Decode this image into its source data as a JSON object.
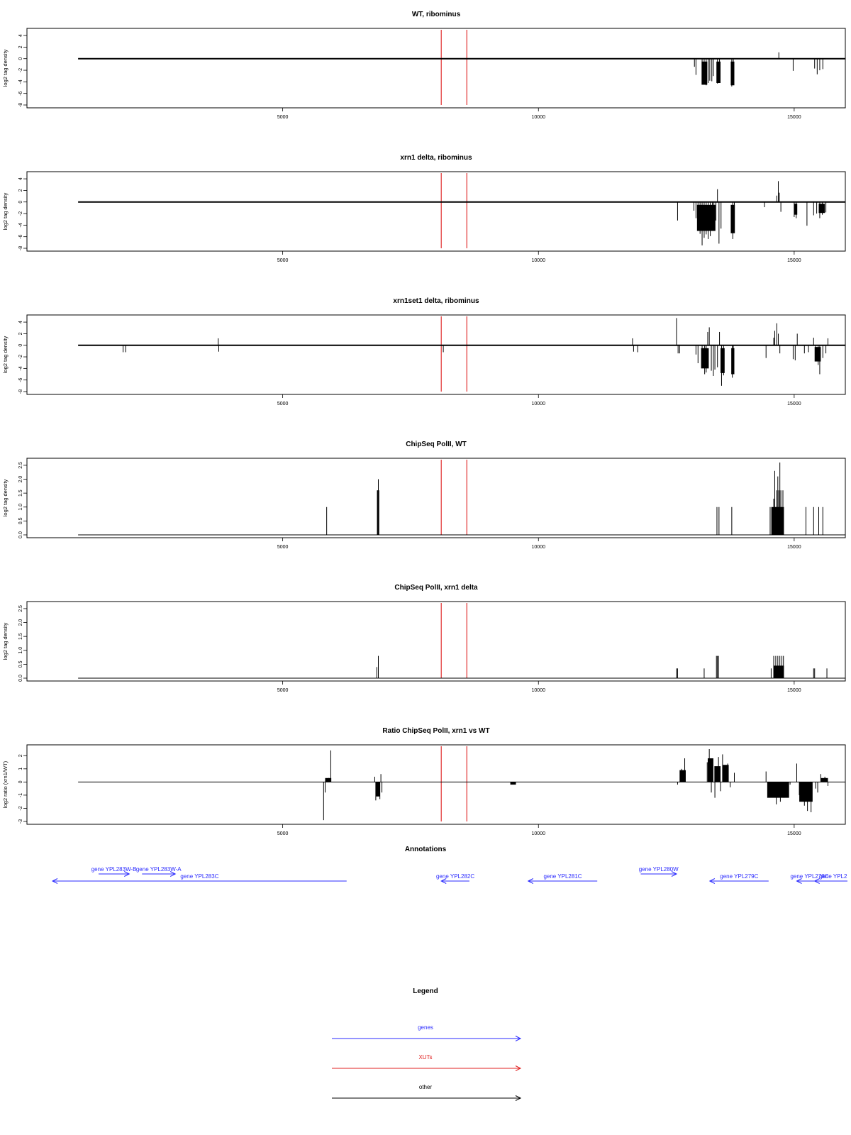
{
  "xaxis": {
    "min": 0,
    "max": 16000,
    "ticks": [
      5000,
      10000,
      15000
    ]
  },
  "colors": {
    "data": "#000000",
    "xut_marker": "#e03030",
    "gene": "#2a2aff",
    "xut": "#e02020",
    "other": "#000000"
  },
  "xut_markers": [
    8100,
    8600
  ],
  "chart_data": [
    {
      "type": "bar",
      "title": "WT, ribominus",
      "ylabel": "log2 tag density",
      "ylim": [
        -8,
        4.5
      ],
      "yticks": [
        -8,
        -6,
        -4,
        -2,
        0,
        2,
        4
      ],
      "baseline_range": [
        1000,
        16000
      ],
      "bars": [
        [
          13050,
          -1.4
        ],
        [
          13080,
          -2.8
        ],
        [
          13200,
          -4.0
        ],
        [
          13240,
          -3.3
        ],
        [
          13280,
          -4.6
        ],
        [
          13320,
          -4.2
        ],
        [
          13350,
          -3.8
        ],
        [
          13390,
          -3.9
        ],
        [
          13420,
          -3.0
        ],
        [
          13500,
          -4.3
        ],
        [
          13540,
          -3.2
        ],
        [
          13780,
          -4.8
        ],
        [
          13810,
          -3.9
        ],
        [
          14700,
          1.1
        ],
        [
          14980,
          -2.1
        ],
        [
          15400,
          -1.7
        ],
        [
          15450,
          -2.7
        ],
        [
          15500,
          -2.0
        ],
        [
          15560,
          -1.8
        ]
      ],
      "spans": [
        [
          13190,
          13300,
          -4.5,
          -0.5
        ],
        [
          13480,
          13560,
          -4.2,
          -0.5
        ],
        [
          13760,
          13830,
          -4.6,
          -0.5
        ]
      ]
    },
    {
      "type": "bar",
      "title": "xrn1 delta, ribominus",
      "ylabel": "log2 tag density",
      "ylim": [
        -8,
        4.5
      ],
      "yticks": [
        -8,
        -6,
        -4,
        -2,
        0,
        2,
        4
      ],
      "baseline_range": [
        1000,
        16000
      ],
      "bars": [
        [
          12720,
          -3.2
        ],
        [
          13040,
          -1.5
        ],
        [
          13080,
          -2.8
        ],
        [
          13120,
          -4.2
        ],
        [
          13160,
          -5.5
        ],
        [
          13200,
          -7.5
        ],
        [
          13240,
          -6.2
        ],
        [
          13280,
          -5.6
        ],
        [
          13320,
          -6.4
        ],
        [
          13360,
          -5.9
        ],
        [
          13400,
          -4.6
        ],
        [
          13430,
          -3.6
        ],
        [
          13470,
          -3.2
        ],
        [
          13500,
          2.2
        ],
        [
          13530,
          -7.2
        ],
        [
          13570,
          -4.6
        ],
        [
          13800,
          -6.4
        ],
        [
          13830,
          -5.1
        ],
        [
          14420,
          -0.9
        ],
        [
          14660,
          1.1
        ],
        [
          14690,
          3.6
        ],
        [
          14710,
          1.6
        ],
        [
          14740,
          -1.7
        ],
        [
          15000,
          -2.6
        ],
        [
          15040,
          -2.8
        ],
        [
          15250,
          -4.1
        ],
        [
          15380,
          -2.3
        ],
        [
          15440,
          -2.0
        ],
        [
          15500,
          -2.8
        ],
        [
          15550,
          -2.2
        ],
        [
          15620,
          -1.8
        ]
      ],
      "spans": [
        [
          13100,
          13460,
          -5.0,
          -0.5
        ],
        [
          13760,
          13840,
          -5.4,
          -0.5
        ],
        [
          15000,
          15060,
          -2.2,
          -0.3
        ],
        [
          15480,
          15600,
          -1.9,
          -0.3
        ]
      ]
    },
    {
      "type": "bar",
      "title": "xrn1set1 delta, ribominus",
      "ylabel": "log2 tag density",
      "ylim": [
        -8,
        4.5
      ],
      "yticks": [
        -8,
        -6,
        -4,
        -2,
        0,
        2,
        4
      ],
      "baseline_range": [
        1000,
        16000
      ],
      "bars": [
        [
          1880,
          -1.2
        ],
        [
          1930,
          -1.2
        ],
        [
          3740,
          1.2
        ],
        [
          3750,
          -1.1
        ],
        [
          8140,
          -1.2
        ],
        [
          11840,
          1.2
        ],
        [
          11860,
          -1.1
        ],
        [
          11940,
          -1.2
        ],
        [
          12700,
          4.7
        ],
        [
          12730,
          -1.4
        ],
        [
          12760,
          -1.4
        ],
        [
          13080,
          -1.6
        ],
        [
          13120,
          -3.1
        ],
        [
          13200,
          -3.6
        ],
        [
          13250,
          -5.0
        ],
        [
          13280,
          -4.7
        ],
        [
          13310,
          2.3
        ],
        [
          13340,
          3.1
        ],
        [
          13380,
          -4.4
        ],
        [
          13420,
          -5.3
        ],
        [
          13450,
          -4.2
        ],
        [
          13500,
          -3.8
        ],
        [
          13540,
          2.3
        ],
        [
          13580,
          -7.0
        ],
        [
          13620,
          -5.2
        ],
        [
          13790,
          -5.6
        ],
        [
          13810,
          -4.8
        ],
        [
          14450,
          -2.2
        ],
        [
          14600,
          1.3
        ],
        [
          14620,
          2.5
        ],
        [
          14660,
          3.8
        ],
        [
          14690,
          2.0
        ],
        [
          14720,
          -1.4
        ],
        [
          14980,
          -2.4
        ],
        [
          15020,
          -2.6
        ],
        [
          15060,
          2.0
        ],
        [
          15200,
          -1.4
        ],
        [
          15280,
          -1.2
        ],
        [
          15380,
          1.3
        ],
        [
          15420,
          -2.6
        ],
        [
          15470,
          -3.4
        ],
        [
          15500,
          -5.0
        ],
        [
          15560,
          -2.2
        ],
        [
          15620,
          -1.4
        ],
        [
          15660,
          1.2
        ]
      ],
      "spans": [
        [
          13180,
          13330,
          -4.0,
          -0.5
        ],
        [
          13560,
          13640,
          -4.8,
          -0.5
        ],
        [
          13770,
          13830,
          -5.0,
          -0.5
        ],
        [
          15400,
          15520,
          -2.8,
          -0.3
        ]
      ]
    },
    {
      "type": "bar",
      "title": "ChipSeq PolII, WT",
      "ylabel": "log2 tag density",
      "ylim": [
        0,
        2.6
      ],
      "yticks": [
        0.0,
        0.5,
        1.0,
        1.5,
        2.0,
        2.5
      ],
      "baseline_range": [
        1000,
        16000
      ],
      "bars": [
        [
          5860,
          1.0
        ],
        [
          6850,
          1.6
        ],
        [
          6870,
          2.0
        ],
        [
          6880,
          1.6
        ],
        [
          13490,
          1.0
        ],
        [
          13530,
          1.0
        ],
        [
          13780,
          1.0
        ],
        [
          14530,
          1.0
        ],
        [
          14560,
          1.0
        ],
        [
          14600,
          1.3
        ],
        [
          14620,
          2.3
        ],
        [
          14640,
          1.0
        ],
        [
          14660,
          1.6
        ],
        [
          14680,
          2.1
        ],
        [
          14700,
          1.6
        ],
        [
          14720,
          2.6
        ],
        [
          14740,
          1.6
        ],
        [
          14760,
          1.0
        ],
        [
          14780,
          1.6
        ],
        [
          15230,
          1.0
        ],
        [
          15380,
          1.0
        ],
        [
          15480,
          1.0
        ],
        [
          15560,
          1.0
        ]
      ],
      "spans": [
        [
          14560,
          14800,
          1.0,
          0.0
        ],
        [
          6850,
          6880,
          1.6,
          0.0
        ]
      ]
    },
    {
      "type": "bar",
      "title": "ChipSeq PolII, xrn1 delta",
      "ylabel": "log2 tag density",
      "ylim": [
        0,
        2.6
      ],
      "yticks": [
        0.0,
        0.5,
        1.0,
        1.5,
        2.0,
        2.5
      ],
      "baseline_range": [
        1000,
        16000
      ],
      "bars": [
        [
          6840,
          0.4
        ],
        [
          6870,
          0.8
        ],
        [
          12700,
          0.35
        ],
        [
          12720,
          0.35
        ],
        [
          13240,
          0.35
        ],
        [
          13480,
          0.8
        ],
        [
          13500,
          0.8
        ],
        [
          13520,
          0.8
        ],
        [
          14550,
          0.35
        ],
        [
          14600,
          0.8
        ],
        [
          14640,
          0.8
        ],
        [
          14680,
          0.8
        ],
        [
          14700,
          0.4
        ],
        [
          14720,
          0.8
        ],
        [
          14760,
          0.8
        ],
        [
          14790,
          0.8
        ],
        [
          15380,
          0.35
        ],
        [
          15400,
          0.35
        ],
        [
          15640,
          0.35
        ]
      ],
      "spans": [
        [
          14600,
          14800,
          0.45,
          0.0
        ]
      ]
    },
    {
      "type": "area",
      "title": "Ratio ChipSeq PolII, xrn1 vs WT",
      "ylabel": "log2 ratio (xrn1/WT)",
      "ylim": [
        -3,
        2.5
      ],
      "yticks": [
        -3,
        -2,
        -1,
        0,
        1,
        2
      ],
      "baseline_range": [
        1000,
        16000
      ],
      "bars": [
        [
          5800,
          -2.9
        ],
        [
          5830,
          -0.8
        ],
        [
          5900,
          0.3
        ],
        [
          5940,
          2.4
        ],
        [
          6800,
          0.4
        ],
        [
          6820,
          -1.4
        ],
        [
          6840,
          -1.0
        ],
        [
          6900,
          -1.3
        ],
        [
          6920,
          0.6
        ],
        [
          6940,
          -0.8
        ],
        [
          12720,
          -0.2
        ],
        [
          12800,
          1.0
        ],
        [
          12860,
          1.8
        ],
        [
          13300,
          1.5
        ],
        [
          13340,
          2.5
        ],
        [
          13380,
          -0.8
        ],
        [
          13450,
          -1.2
        ],
        [
          13520,
          1.9
        ],
        [
          13560,
          -0.7
        ],
        [
          13600,
          2.1
        ],
        [
          13700,
          1.4
        ],
        [
          13750,
          -0.4
        ],
        [
          13830,
          0.7
        ],
        [
          14450,
          0.8
        ],
        [
          14480,
          -1.2
        ],
        [
          14560,
          -0.9
        ],
        [
          14650,
          -1.7
        ],
        [
          14730,
          -1.5
        ],
        [
          14800,
          -1.2
        ],
        [
          14860,
          -0.6
        ],
        [
          14920,
          -0.2
        ],
        [
          15050,
          1.4
        ],
        [
          15100,
          -1.0
        ],
        [
          15200,
          -1.8
        ],
        [
          15260,
          -2.2
        ],
        [
          15330,
          -2.3
        ],
        [
          15420,
          -0.5
        ],
        [
          15460,
          -0.8
        ],
        [
          15520,
          0.6
        ],
        [
          15600,
          0.4
        ],
        [
          15660,
          -0.3
        ]
      ],
      "spans": [
        [
          5830,
          5950,
          0.3,
          0.0
        ],
        [
          6820,
          6900,
          -1.1,
          0.0
        ],
        [
          9450,
          9560,
          -0.2,
          0.0
        ],
        [
          12760,
          12880,
          0.9,
          0.0
        ],
        [
          13310,
          13420,
          1.8,
          0.0
        ],
        [
          13440,
          13560,
          1.2,
          0.0
        ],
        [
          13600,
          13720,
          1.3,
          0.0
        ],
        [
          14480,
          14900,
          -1.2,
          0.0
        ],
        [
          15100,
          15360,
          -1.5,
          0.0
        ],
        [
          15520,
          15660,
          0.3,
          0.0
        ]
      ]
    }
  ],
  "annotations": {
    "title": "Annotations",
    "items": [
      {
        "label": "gene YPL283W-B",
        "start": 1400,
        "end": 2000,
        "dir": "right",
        "row": 0
      },
      {
        "label": "gene YPL283W-A",
        "start": 2250,
        "end": 2900,
        "dir": "right",
        "row": 0
      },
      {
        "label": "gene YPL283C",
        "start": 500,
        "end": 6250,
        "dir": "left",
        "row": 1
      },
      {
        "label": "gene YPL282C",
        "start": 8100,
        "end": 8650,
        "dir": "left",
        "row": 1
      },
      {
        "label": "gene YPL281C",
        "start": 9800,
        "end": 11150,
        "dir": "left",
        "row": 1
      },
      {
        "label": "gene YPL280W",
        "start": 12000,
        "end": 12700,
        "dir": "right",
        "row": 0
      },
      {
        "label": "gene YPL279C",
        "start": 13350,
        "end": 14500,
        "dir": "left",
        "row": 1
      },
      {
        "label": "gene YPL278C",
        "start": 15050,
        "end": 15550,
        "dir": "left",
        "row": 1
      },
      {
        "label": "gene YPL2",
        "start": 15400,
        "end": 16500,
        "dir": "left",
        "row": 1
      }
    ]
  },
  "legend": {
    "title": "Legend",
    "items": [
      {
        "label": "genes",
        "color": "#2a2aff"
      },
      {
        "label": "XUTs",
        "color": "#e02020"
      },
      {
        "label": "other",
        "color": "#000000"
      }
    ]
  }
}
